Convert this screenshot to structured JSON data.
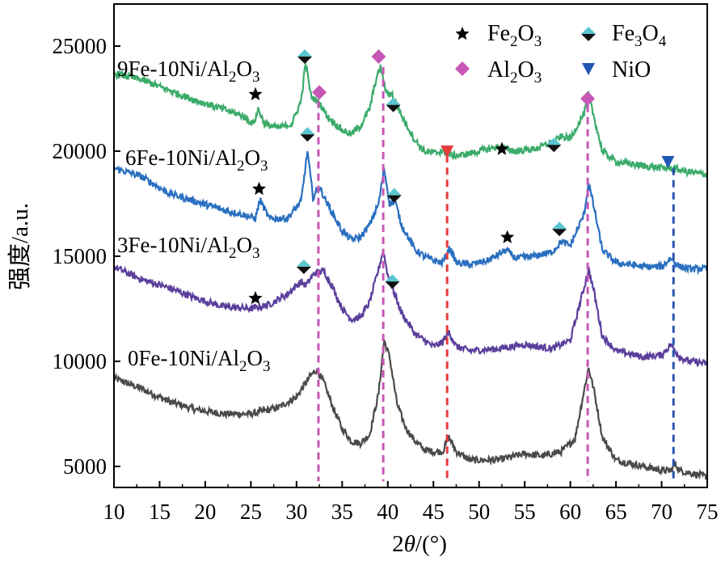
{
  "chart_data": {
    "type": "line",
    "title": "",
    "xlabel": "2θ/(°)",
    "xlabel_parts": {
      "italic": "θ",
      "prefix": "2",
      "suffix": "/(°)"
    },
    "ylabel": "强度/a.u.",
    "xlim": [
      10,
      75
    ],
    "ylim": [
      4000,
      27000
    ],
    "x_ticks": [
      10,
      15,
      20,
      25,
      30,
      35,
      40,
      45,
      50,
      55,
      60,
      65,
      70,
      75
    ],
    "y_ticks": [
      5000,
      10000,
      15000,
      20000,
      25000
    ],
    "legend": {
      "position": "top-right",
      "entries": [
        {
          "label": "Fe2O3",
          "base": "Fe",
          "sub": "2",
          "mid": "O",
          "sub2": "3",
          "marker": "star",
          "color": "#000000"
        },
        {
          "label": "Fe3O4",
          "base": "Fe",
          "sub": "3",
          "mid": "O",
          "sub2": "4",
          "marker": "diamond-half",
          "color": "#5bc6d0"
        },
        {
          "label": "Al2O3",
          "base": "Al",
          "sub": "2",
          "mid": "O",
          "sub2": "3",
          "marker": "diamond",
          "color": "#c657b5"
        },
        {
          "label": "NiO",
          "base": "NiO",
          "sub": "",
          "mid": "",
          "sub2": "",
          "marker": "triangle-down",
          "color": "#1f55b5"
        }
      ]
    },
    "series": [
      {
        "name": "0Fe-10Ni/Al2O3",
        "label_parts": [
          "0Fe-10Ni/Al",
          "2",
          "O",
          "3"
        ],
        "color": "#4a4a4a",
        "x": [
          10,
          13,
          16,
          19,
          22,
          25,
          28,
          30,
          31.5,
          32.2,
          33,
          34,
          35,
          36,
          37,
          38,
          39,
          39.6,
          40.2,
          41,
          42,
          43,
          44,
          45,
          46,
          46.7,
          47.5,
          49,
          52,
          55,
          57,
          59,
          60.5,
          61.5,
          62,
          62.6,
          63.5,
          65,
          68,
          70,
          71,
          71.5,
          72,
          73,
          75
        ],
        "values": [
          9200,
          8700,
          8100,
          7700,
          7500,
          7500,
          7800,
          8300,
          9300,
          9600,
          9000,
          7800,
          6800,
          6200,
          6100,
          6500,
          8500,
          11000,
          10200,
          8000,
          6800,
          6200,
          5800,
          5700,
          5700,
          6400,
          5700,
          5300,
          5300,
          5600,
          5500,
          5700,
          6300,
          8600,
          9700,
          8600,
          6400,
          5300,
          5000,
          4800,
          4800,
          5100,
          4800,
          4700,
          4500
        ]
      },
      {
        "name": "3Fe-10Ni/Al2O3",
        "label_parts": [
          "3Fe-10Ni/Al",
          "2",
          "O",
          "3"
        ],
        "color": "#5b3f9c",
        "x": [
          10,
          13,
          16,
          19,
          22,
          25,
          27,
          29,
          30.5,
          31,
          32,
          33,
          34,
          35,
          36,
          37,
          38,
          39,
          39.5,
          40,
          40.5,
          41.5,
          43,
          44,
          45,
          46,
          46.7,
          47.5,
          49,
          52,
          55,
          58,
          60,
          61.5,
          62,
          62.6,
          63.5,
          65,
          68,
          70,
          71,
          72,
          73,
          75
        ],
        "values": [
          14500,
          13900,
          13500,
          13000,
          12600,
          12500,
          12700,
          13200,
          13800,
          13600,
          14200,
          14300,
          13500,
          12500,
          12000,
          12100,
          12800,
          14400,
          15300,
          14100,
          13500,
          12300,
          11300,
          11000,
          10700,
          10900,
          11400,
          10700,
          10500,
          10600,
          10800,
          10600,
          11000,
          13500,
          14400,
          13300,
          11200,
          10500,
          10200,
          10300,
          10800,
          10200,
          10000,
          9900
        ]
      },
      {
        "name": "6Fe-10Ni/Al2O3",
        "label_parts": [
          "6Fe-10Ni/Al",
          "2",
          "O",
          "3"
        ],
        "color": "#2a6fc0",
        "x": [
          10,
          13,
          16,
          19,
          22,
          24,
          25.5,
          26,
          27,
          29,
          30.5,
          31.2,
          31.8,
          32.5,
          33.5,
          35,
          36,
          37,
          38,
          39,
          39.6,
          40.2,
          40.8,
          41.5,
          43,
          44,
          45,
          46,
          46.8,
          47.5,
          49,
          51,
          53,
          54,
          56,
          58,
          59,
          60,
          61.5,
          62,
          62.6,
          63.5,
          65,
          68,
          70,
          71,
          72,
          73,
          75
        ],
        "values": [
          19200,
          18800,
          18000,
          17600,
          17200,
          17000,
          16800,
          17700,
          16800,
          16800,
          17600,
          20000,
          17800,
          18300,
          17400,
          16200,
          15800,
          15900,
          16500,
          17500,
          19200,
          17500,
          17600,
          16500,
          15300,
          15000,
          14800,
          14700,
          15400,
          14700,
          14600,
          14800,
          15300,
          14900,
          15000,
          15200,
          15700,
          15500,
          17000,
          18500,
          17300,
          15300,
          14700,
          14500,
          14500,
          14900,
          14500,
          14400,
          14400
        ]
      },
      {
        "name": "9Fe-10Ni/Al2O3",
        "label_parts": [
          "9Fe-10Ni/Al",
          "2",
          "O",
          "3"
        ],
        "color": "#3bab6a",
        "x": [
          10,
          13,
          16,
          19,
          22,
          24,
          25.3,
          25.8,
          26.5,
          28,
          29.5,
          30.5,
          31,
          31.6,
          32.5,
          33.5,
          35,
          36,
          37,
          38,
          38.7,
          39.2,
          39.8,
          40.5,
          41.5,
          43,
          44,
          45,
          46,
          47,
          48,
          50,
          52,
          54,
          56,
          58,
          59,
          60,
          61.5,
          62,
          62.6,
          63.5,
          65,
          68,
          70,
          71,
          72,
          73,
          75
        ],
        "values": [
          23700,
          23400,
          22900,
          22400,
          22000,
          21700,
          21300,
          22000,
          21300,
          21100,
          21300,
          22400,
          24200,
          22600,
          22300,
          21600,
          21000,
          20800,
          21200,
          22000,
          23400,
          24000,
          22800,
          22700,
          21700,
          20500,
          20000,
          19900,
          20000,
          19800,
          19800,
          20000,
          20200,
          20000,
          20100,
          20400,
          20700,
          20600,
          21800,
          22700,
          21600,
          20000,
          19500,
          19300,
          19200,
          19200,
          19100,
          19000,
          18900
        ]
      }
    ],
    "markers": [
      {
        "series": "9Fe-10Ni/Al2O3",
        "type": "star",
        "x": 25.5,
        "y": 22700
      },
      {
        "series": "9Fe-10Ni/Al2O3",
        "type": "diamond-half",
        "x": 30.9,
        "y": 24500
      },
      {
        "series": "9Fe-10Ni/Al2O3",
        "type": "diamond",
        "x": 32.5,
        "y": 22800
      },
      {
        "series": "9Fe-10Ni/Al2O3",
        "type": "diamond",
        "x": 39.0,
        "y": 24500
      },
      {
        "series": "9Fe-10Ni/Al2O3",
        "type": "diamond-half",
        "x": 40.6,
        "y": 22200
      },
      {
        "series": "9Fe-10Ni/Al2O3",
        "type": "triangle-down",
        "x": 46.5,
        "y": 20000
      },
      {
        "series": "9Fe-10Ni/Al2O3",
        "type": "star",
        "x": 52.5,
        "y": 20100
      },
      {
        "series": "9Fe-10Ni/Al2O3",
        "type": "diamond-half",
        "x": 58.2,
        "y": 20300
      },
      {
        "series": "9Fe-10Ni/Al2O3",
        "type": "diamond",
        "x": 61.9,
        "y": 22500
      },
      {
        "series": "6Fe-10Ni/Al2O3",
        "type": "diamond-half",
        "x": 31.2,
        "y": 20800
      },
      {
        "series": "6Fe-10Ni/Al2O3",
        "type": "star",
        "x": 25.9,
        "y": 18200
      },
      {
        "series": "6Fe-10Ni/Al2O3",
        "type": "diamond-half",
        "x": 40.7,
        "y": 17900
      },
      {
        "series": "6Fe-10Ni/Al2O3",
        "type": "star",
        "x": 53.1,
        "y": 15900
      },
      {
        "series": "6Fe-10Ni/Al2O3",
        "type": "diamond-half",
        "x": 58.8,
        "y": 16300
      },
      {
        "series": "6Fe-10Ni/Al2O3",
        "type": "triangle-down",
        "x": 70.7,
        "y": 19500
      },
      {
        "series": "3Fe-10Ni/Al2O3",
        "type": "diamond-half",
        "x": 30.8,
        "y": 14500
      },
      {
        "series": "3Fe-10Ni/Al2O3",
        "type": "star",
        "x": 25.5,
        "y": 13000
      },
      {
        "series": "3Fe-10Ni/Al2O3",
        "type": "diamond-half",
        "x": 40.5,
        "y": 13800
      }
    ],
    "reference_lines": [
      {
        "x": 32.4,
        "y_top": 22400,
        "color": "#c657b5",
        "style": "dashed"
      },
      {
        "x": 39.5,
        "y_top": 24000,
        "color": "#c657b5",
        "style": "dashed"
      },
      {
        "x": 46.5,
        "y_top": 19800,
        "color": "#e63c3c",
        "style": "dashed"
      },
      {
        "x": 61.9,
        "y_top": 22200,
        "color": "#c657b5",
        "style": "dashed"
      },
      {
        "x": 71.3,
        "y_top": 19200,
        "color": "#2a55b0",
        "style": "dashed"
      }
    ]
  }
}
